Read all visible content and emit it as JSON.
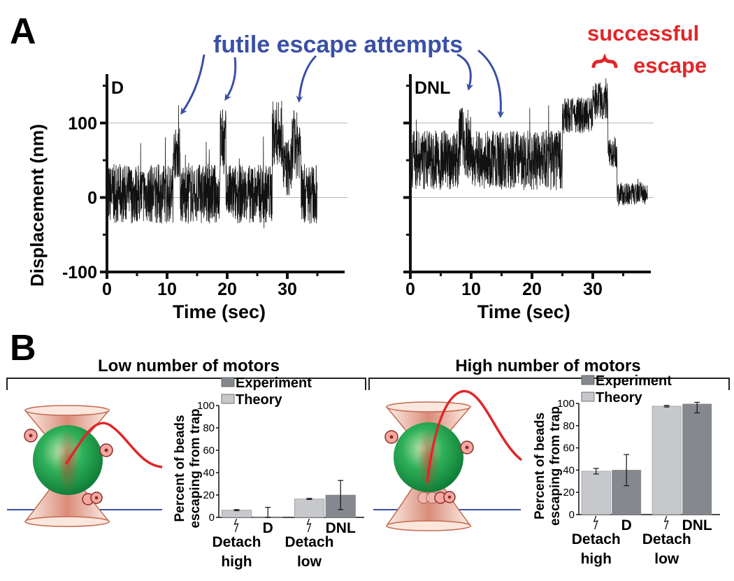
{
  "panel_a": {
    "label": "A",
    "annotation_futile": "futile escape attempts",
    "annotation_success": [
      "successful",
      "escape"
    ],
    "colors": {
      "futile": "#3a50a6",
      "success": "#e0262a",
      "trace": "#111111",
      "gridline": "#b4b4b4"
    }
  },
  "panel_b": {
    "label": "B",
    "low_header": "Low number of motors",
    "high_header": "High number of motors",
    "colors": {
      "experiment": "#85888e",
      "theory": "#c6c8cc",
      "bead": "#1fa650",
      "trap": "#f1c6b6",
      "tether": "#e0262a",
      "surface": "#3a50a6"
    }
  },
  "chart_data": [
    {
      "id": "trace-D",
      "type": "line",
      "panel_title": "D",
      "xlabel": "Time (sec)",
      "ylabel": "Displacement (nm)",
      "xlim": [
        0,
        40
      ],
      "ylim": [
        -100,
        160
      ],
      "xticks": [
        0,
        10,
        20,
        30
      ],
      "yticks": [
        -100,
        0,
        100
      ],
      "gridlines_y": [
        0,
        100
      ],
      "segments": [
        {
          "x": [
            0,
            11.0
          ],
          "baseline": 5,
          "noise": 40
        },
        {
          "x": [
            11.0,
            12.2
          ],
          "baseline": 60,
          "noise": 35
        },
        {
          "x": [
            12.2,
            18.8
          ],
          "baseline": 5,
          "noise": 40
        },
        {
          "x": [
            18.8,
            19.8
          ],
          "baseline": 75,
          "noise": 45
        },
        {
          "x": [
            19.8,
            27.5
          ],
          "baseline": 5,
          "noise": 40
        },
        {
          "x": [
            27.5,
            29.3
          ],
          "baseline": 85,
          "noise": 45
        },
        {
          "x": [
            29.3,
            30.8
          ],
          "baseline": 40,
          "noise": 40
        },
        {
          "x": [
            30.8,
            32.3
          ],
          "baseline": 70,
          "noise": 45
        },
        {
          "x": [
            32.3,
            35
          ],
          "baseline": 5,
          "noise": 40
        }
      ],
      "escape_attempts_sec": [
        12,
        19.5,
        32
      ]
    },
    {
      "id": "trace-DNL",
      "type": "line",
      "panel_title": "DNL",
      "xlabel": "Time (sec)",
      "ylabel": "",
      "xlim": [
        0,
        40
      ],
      "ylim": [
        -100,
        160
      ],
      "xticks": [
        0,
        10,
        20,
        30
      ],
      "yticks": [
        -100,
        0,
        100
      ],
      "gridlines_y": [
        0,
        100
      ],
      "segments": [
        {
          "x": [
            0,
            8.0
          ],
          "baseline": 50,
          "noise": 40
        },
        {
          "x": [
            8.0,
            10.0
          ],
          "baseline": 75,
          "noise": 50
        },
        {
          "x": [
            10.0,
            25.0
          ],
          "baseline": 50,
          "noise": 40
        },
        {
          "x": [
            25.0,
            30.0
          ],
          "baseline": 110,
          "noise": 25
        },
        {
          "x": [
            30.0,
            32.5
          ],
          "baseline": 130,
          "noise": 25
        },
        {
          "x": [
            32.5,
            34.0
          ],
          "baseline": 60,
          "noise": 20
        },
        {
          "x": [
            34.0,
            39
          ],
          "baseline": 5,
          "noise": 15
        }
      ],
      "escape_attempts_sec": [
        8.5,
        14
      ]
    },
    {
      "id": "bar-low",
      "type": "bar",
      "ylabel": [
        "Percent of beads",
        "escaping from trap"
      ],
      "ylim": [
        0,
        100
      ],
      "yticks": [
        0,
        20,
        40,
        60,
        80,
        100
      ],
      "legend": [
        "Experiment",
        "Theory"
      ],
      "legend_position": "top",
      "bars": [
        {
          "series": "Theory",
          "label": [
            "Detach",
            "high"
          ],
          "value": 6.5,
          "err": 0.5
        },
        {
          "series": "Experiment",
          "label": [
            "D"
          ],
          "value": 0.5,
          "err": 8.5
        },
        {
          "series": "Theory",
          "label": [
            "Detach",
            "low"
          ],
          "value": 16.5,
          "err": 0.5
        },
        {
          "series": "Experiment",
          "label": [
            "DNL"
          ],
          "value": 20,
          "err": 13
        }
      ]
    },
    {
      "id": "bar-high",
      "type": "bar",
      "ylabel": [
        "Percent of beads",
        "escaping from trap"
      ],
      "ylim": [
        0,
        100
      ],
      "yticks": [
        0,
        20,
        40,
        60,
        80,
        100
      ],
      "legend": [
        "Experiment",
        "Theory"
      ],
      "legend_position": "top",
      "bars": [
        {
          "series": "Theory",
          "label": [
            "Detach",
            "high"
          ],
          "value": 39,
          "err": 2.5
        },
        {
          "series": "Experiment",
          "label": [
            "D"
          ],
          "value": 40,
          "err": 14
        },
        {
          "series": "Theory",
          "label": [
            "Detach",
            "low"
          ],
          "value": 97.5,
          "err": 0.7
        },
        {
          "series": "Experiment",
          "label": [
            "DNL"
          ],
          "value": 99.5,
          "err": 8
        }
      ]
    }
  ]
}
